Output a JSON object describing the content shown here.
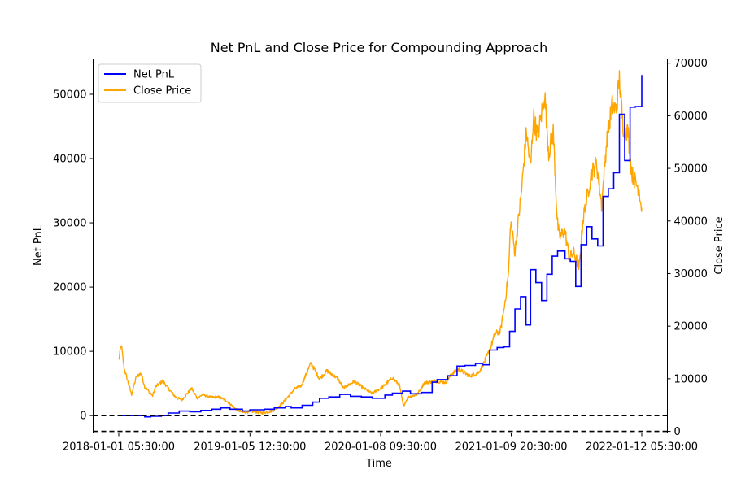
{
  "chart_data": {
    "type": "line",
    "title": "Net PnL and Close Price for Compounding Approach",
    "xlabel": "Time",
    "ylabel_left": "Net PnL",
    "ylabel_right": "Close Price",
    "x_tick_labels": [
      "2018-01-01 05:30:00",
      "2019-01-05 12:30:00",
      "2020-01-08 09:30:00",
      "2021-01-09 20:30:00",
      "2022-01-12 05:30:00"
    ],
    "ylim_left": [
      -2700,
      55500
    ],
    "ylim_right": [
      -300,
      70800
    ],
    "yticks_left": [
      0,
      10000,
      20000,
      30000,
      40000,
      50000
    ],
    "yticks_right": [
      0,
      10000,
      20000,
      30000,
      40000,
      50000,
      60000,
      70000
    ],
    "legend_position": "top-left",
    "reference_lines": {
      "left_axis_y": 0,
      "right_axis_y": 0,
      "style": "dashed",
      "color": "#000000"
    },
    "series": [
      {
        "name": "Net PnL",
        "axis": "left",
        "color": "#0000ff",
        "step": true,
        "x": [
          "2018-01-01",
          "2018-03-15",
          "2018-04-01",
          "2018-05-01",
          "2018-05-20",
          "2018-06-20",
          "2018-07-20",
          "2018-08-20",
          "2018-09-20",
          "2018-10-15",
          "2018-11-10",
          "2018-12-15",
          "2019-01-05",
          "2019-02-15",
          "2019-03-15",
          "2019-04-15",
          "2019-05-01",
          "2019-06-01",
          "2019-07-01",
          "2019-07-20",
          "2019-08-15",
          "2019-09-15",
          "2019-10-15",
          "2019-11-15",
          "2019-12-15",
          "2020-01-20",
          "2020-02-10",
          "2020-03-10",
          "2020-04-01",
          "2020-05-01",
          "2020-06-01",
          "2020-06-15",
          "2020-07-15",
          "2020-08-10",
          "2020-09-01",
          "2020-10-01",
          "2020-10-20",
          "2020-11-10",
          "2020-12-01",
          "2020-12-20",
          "2021-01-05",
          "2021-01-20",
          "2021-02-05",
          "2021-02-20",
          "2021-03-05",
          "2021-03-20",
          "2021-04-05",
          "2021-04-20",
          "2021-05-05",
          "2021-05-20",
          "2021-06-10",
          "2021-06-25",
          "2021-07-10",
          "2021-07-25",
          "2021-08-10",
          "2021-08-25",
          "2021-09-10",
          "2021-09-25",
          "2021-10-10",
          "2021-10-25",
          "2021-11-10",
          "2021-11-25",
          "2021-12-10",
          "2021-12-25",
          "2022-01-12"
        ],
        "values": [
          0,
          -200,
          -100,
          0,
          400,
          700,
          600,
          800,
          1000,
          1200,
          1000,
          700,
          900,
          1000,
          1200,
          1400,
          1200,
          1600,
          2100,
          2700,
          2900,
          3300,
          3000,
          2900,
          2700,
          3200,
          3500,
          3800,
          3400,
          3600,
          5200,
          5600,
          6200,
          7700,
          7800,
          8100,
          7900,
          10200,
          10600,
          10700,
          13100,
          16600,
          18500,
          14100,
          22700,
          20700,
          17900,
          22000,
          24800,
          25600,
          24400,
          24000,
          20100,
          26600,
          29400,
          27500,
          26400,
          34100,
          35300,
          37800,
          46900,
          39700,
          48000,
          48100,
          53000
        ]
      },
      {
        "name": "Close Price",
        "axis": "right",
        "color": "#ffa500",
        "x": [
          "2018-01-01",
          "2018-01-08",
          "2018-01-16",
          "2018-02-06",
          "2018-02-20",
          "2018-03-05",
          "2018-03-15",
          "2018-04-06",
          "2018-04-15",
          "2018-05-05",
          "2018-05-20",
          "2018-06-10",
          "2018-06-28",
          "2018-07-15",
          "2018-07-25",
          "2018-08-10",
          "2018-08-25",
          "2018-09-15",
          "2018-10-10",
          "2018-11-01",
          "2018-11-25",
          "2018-12-15",
          "2019-01-10",
          "2019-02-10",
          "2019-03-10",
          "2019-04-05",
          "2019-05-10",
          "2019-05-30",
          "2019-06-26",
          "2019-07-20",
          "2019-08-10",
          "2019-09-10",
          "2019-09-25",
          "2019-10-26",
          "2019-11-15",
          "2019-12-15",
          "2020-01-15",
          "2020-02-10",
          "2020-03-01",
          "2020-03-12",
          "2020-03-25",
          "2020-04-20",
          "2020-05-10",
          "2020-06-10",
          "2020-07-10",
          "2020-07-27",
          "2020-08-15",
          "2020-09-15",
          "2020-10-10",
          "2020-10-25",
          "2020-11-10",
          "2020-11-25",
          "2020-12-10",
          "2020-12-20",
          "2021-01-02",
          "2021-01-08",
          "2021-01-20",
          "2021-02-08",
          "2021-02-21",
          "2021-03-05",
          "2021-03-13",
          "2021-03-25",
          "2021-04-14",
          "2021-04-25",
          "2021-05-08",
          "2021-05-19",
          "2021-05-25",
          "2021-06-10",
          "2021-06-22",
          "2021-07-05",
          "2021-07-20",
          "2021-07-30",
          "2021-08-15",
          "2021-08-23",
          "2021-09-07",
          "2021-09-21",
          "2021-10-05",
          "2021-10-20",
          "2021-11-01",
          "2021-11-10",
          "2021-11-20",
          "2021-12-04",
          "2021-12-15",
          "2021-12-28",
          "2022-01-05",
          "2022-01-10",
          "2022-01-12"
        ],
        "values": [
          13500,
          16500,
          12000,
          7000,
          10500,
          11000,
          8500,
          6800,
          8500,
          9600,
          8200,
          6500,
          6000,
          7400,
          8200,
          6300,
          7000,
          6500,
          6500,
          5800,
          4300,
          3600,
          3800,
          3500,
          3900,
          5200,
          8000,
          8700,
          13000,
          10000,
          11500,
          10000,
          8200,
          9500,
          8500,
          7200,
          8500,
          10200,
          8800,
          4800,
          6500,
          7000,
          9200,
          9600,
          9300,
          11000,
          11800,
          10500,
          11200,
          13000,
          15500,
          18500,
          19000,
          23000,
          30000,
          40000,
          34000,
          46000,
          57000,
          50000,
          60000,
          56000,
          64000,
          53000,
          57000,
          40000,
          37000,
          38000,
          33000,
          34000,
          31000,
          40000,
          46000,
          49000,
          51000,
          43000,
          55000,
          62000,
          61000,
          67000,
          58000,
          57000,
          49000,
          47000,
          46000,
          43000,
          42500
        ]
      }
    ]
  }
}
